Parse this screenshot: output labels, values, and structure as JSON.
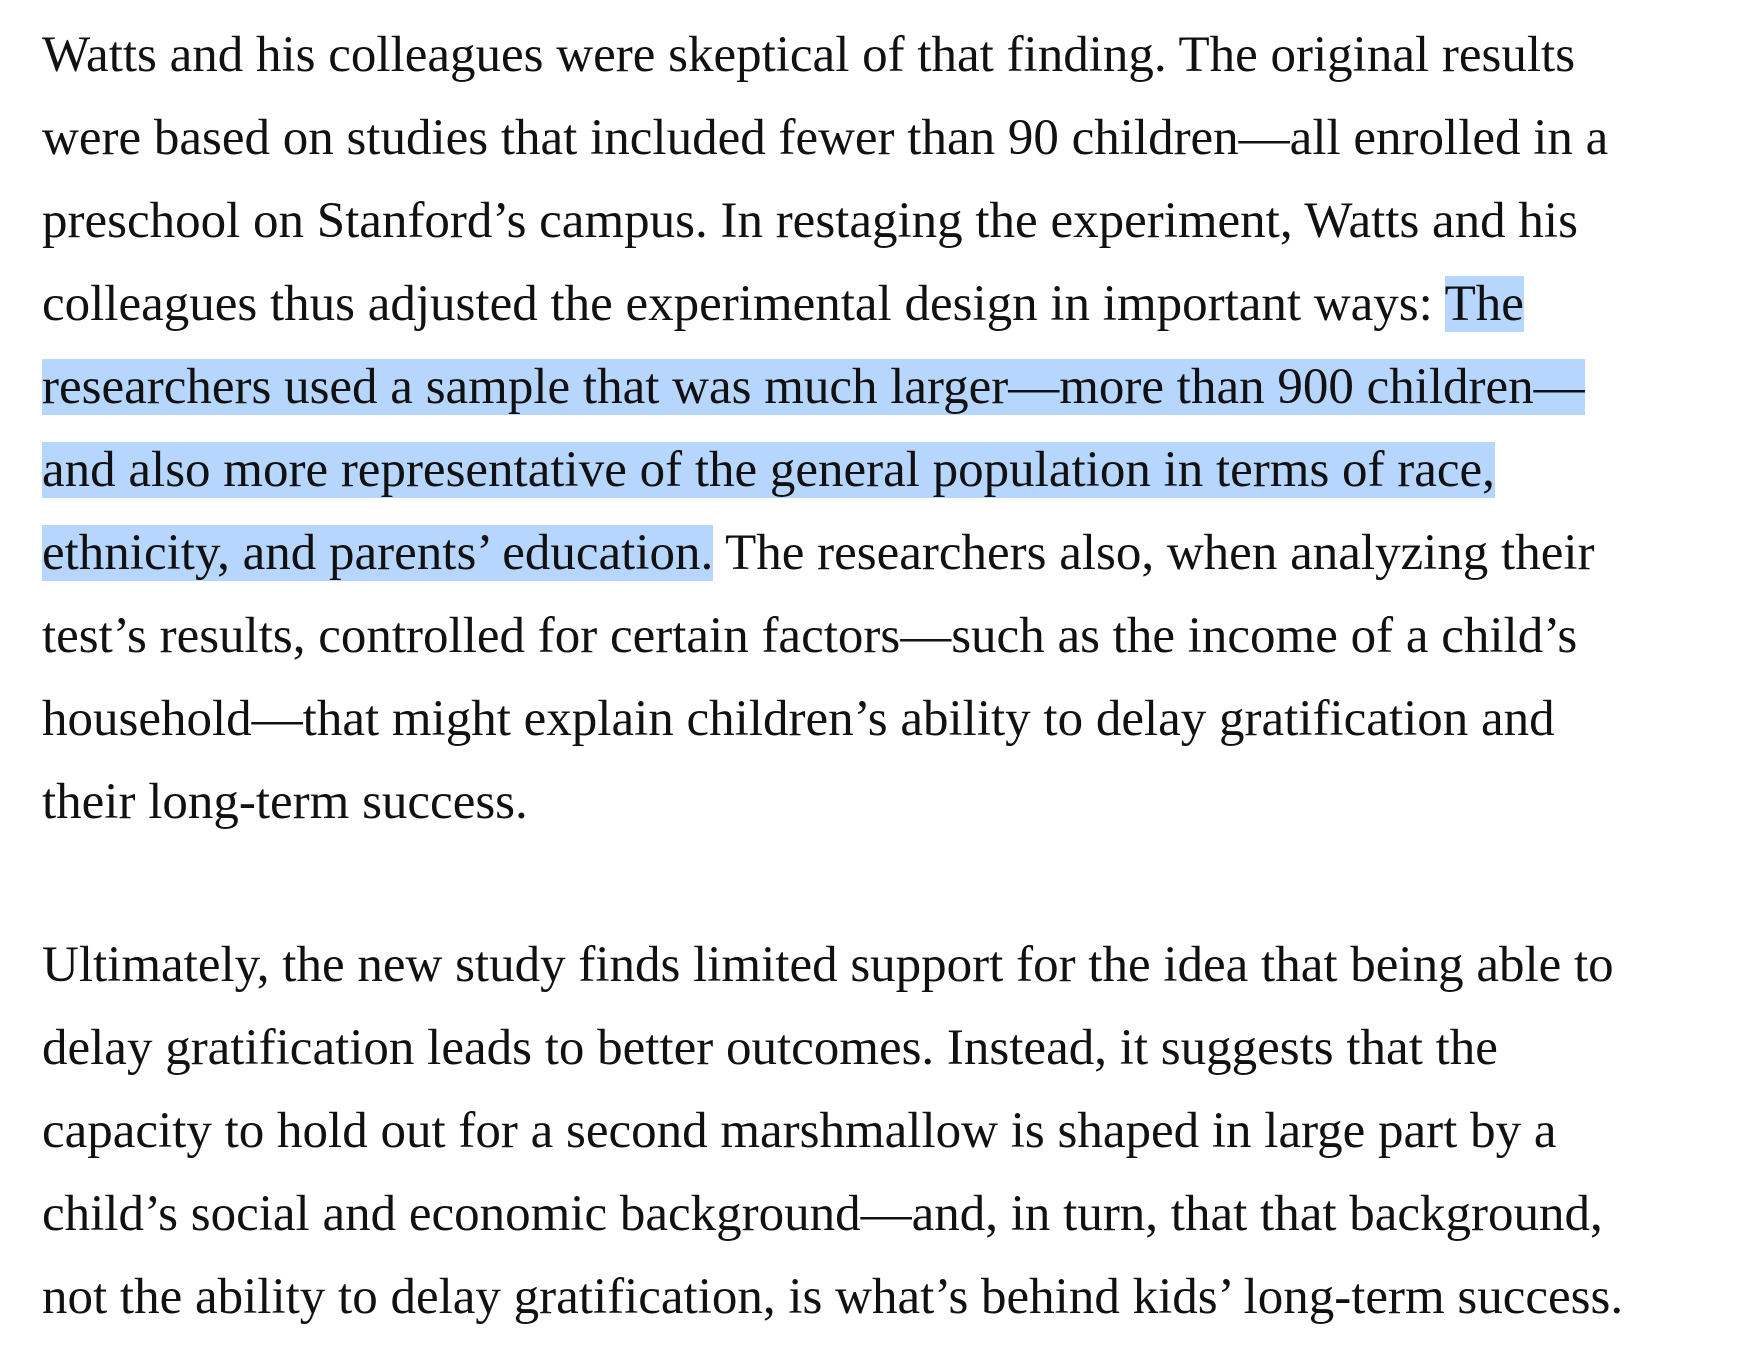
{
  "paragraph_1": {
    "lines": {
      "l1": "Watts and his colleagues were skeptical of that finding. The original results",
      "l2": "were based on studies that included fewer than 90 children—all enrolled in a",
      "l3": "preschool on Stanford’s campus. In restaging the experiment, Watts and his",
      "l4_plain": "colleagues thus adjusted the experimental design in important ways: ",
      "l4_selected": "The",
      "l5_selected": "researchers used a sample that was much larger—more than 900 children—",
      "l6_selected": "and also more representative of the general population in terms of race,",
      "l7_selected": "ethnicity, and parents’ education.",
      "l7_plain": " The researchers also, when analyzing their",
      "l8": "test’s results, controlled for certain factors—such as the income of a child’s",
      "l9": "household—that might explain children’s ability to delay gratification and",
      "l10": "their long-term success."
    }
  },
  "paragraph_2": {
    "lines": {
      "l1": "Ultimately, the new study finds limited support for the idea that being able to",
      "l2": "delay gratification leads to better outcomes. Instead, it suggests that the",
      "l3": "capacity to hold out for a second marshmallow is shaped in large part by a",
      "l4": "child’s social and economic background—and, in turn, that that background,",
      "l5": "not the ability to delay gratification, is what’s behind kids’ long-term success."
    }
  },
  "colors": {
    "selection": "#b6d6fd",
    "text": "#111111",
    "background": "#ffffff"
  }
}
